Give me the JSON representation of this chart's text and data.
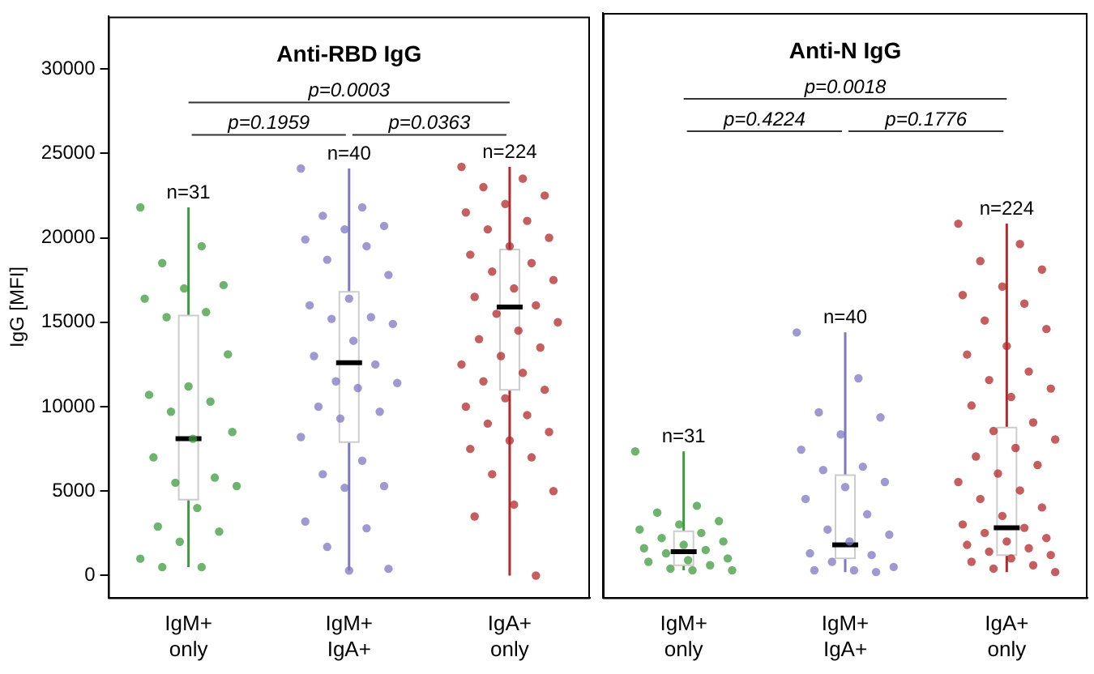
{
  "chart_data": [
    {
      "type": "box",
      "title": "Anti-RBD IgG",
      "ylabel": "IgG [MFI]",
      "categories": [
        "IgM+\nonly",
        "IgM+\nIgA+",
        "IgA+\nonly"
      ],
      "ylim": [
        -1300,
        33100
      ],
      "yticks": [
        0,
        5000,
        10000,
        15000,
        20000,
        25000,
        30000
      ],
      "grid": false,
      "boxes": [
        {
          "low": 500,
          "q1": 4500,
          "median": 8100,
          "q3": 15400,
          "high": 21800
        },
        {
          "low": 300,
          "q1": 7900,
          "median": 12600,
          "q3": 16800,
          "high": 24100
        },
        {
          "low": 0,
          "q1": 11000,
          "median": 15900,
          "q3": 19300,
          "high": 24200
        }
      ],
      "series": [
        {
          "type": "scatter",
          "color": "#3d9a3d",
          "x": [
            "IgM+\nonly",
            "IgM+\nonly",
            "IgM+\nonly",
            "IgM+\nonly",
            "IgM+\nonly",
            "IgM+\nonly",
            "IgM+\nonly",
            "IgM+\nonly",
            "IgM+\nonly",
            "IgM+\nonly",
            "IgM+\nonly",
            "IgM+\nonly",
            "IgM+\nonly",
            "IgM+\nonly",
            "IgM+\nonly",
            "IgM+\nonly",
            "IgM+\nonly",
            "IgM+\nonly",
            "IgM+\nonly",
            "IgM+\nonly",
            "IgM+\nonly",
            "IgM+\nonly",
            "IgM+\nonly",
            "IgM+\nonly",
            "IgM+\nonly",
            "IgM+\nonly"
          ],
          "values": [
            21800,
            19500,
            18500,
            17200,
            17000,
            16400,
            15600,
            15300,
            13100,
            11200,
            10700,
            10300,
            9700,
            8500,
            8100,
            7000,
            5800,
            5500,
            5300,
            4000,
            2900,
            2600,
            2000,
            1000,
            500,
            500
          ]
        },
        {
          "type": "scatter",
          "color": "#7d78c2",
          "x": [
            "IgM+\nIgA+",
            "IgM+\nIgA+",
            "IgM+\nIgA+",
            "IgM+\nIgA+",
            "IgM+\nIgA+",
            "IgM+\nIgA+",
            "IgM+\nIgA+",
            "IgM+\nIgA+",
            "IgM+\nIgA+",
            "IgM+\nIgA+",
            "IgM+\nIgA+",
            "IgM+\nIgA+",
            "IgM+\nIgA+",
            "IgM+\nIgA+",
            "IgM+\nIgA+",
            "IgM+\nIgA+",
            "IgM+\nIgA+",
            "IgM+\nIgA+",
            "IgM+\nIgA+",
            "IgM+\nIgA+",
            "IgM+\nIgA+",
            "IgM+\nIgA+",
            "IgM+\nIgA+",
            "IgM+\nIgA+",
            "IgM+\nIgA+",
            "IgM+\nIgA+",
            "IgM+\nIgA+",
            "IgM+\nIgA+",
            "IgM+\nIgA+",
            "IgM+\nIgA+",
            "IgM+\nIgA+",
            "IgM+\nIgA+",
            "IgM+\nIgA+"
          ],
          "values": [
            24100,
            21800,
            21300,
            20700,
            20500,
            19900,
            19500,
            18700,
            17800,
            16400,
            16000,
            15300,
            15200,
            14900,
            13900,
            13000,
            12500,
            11500,
            11400,
            11100,
            10000,
            9700,
            9300,
            8200,
            6800,
            6000,
            5300,
            5200,
            3200,
            2800,
            1700,
            400,
            300
          ]
        },
        {
          "type": "scatter",
          "color": "#b22a2a",
          "x": [
            "IgA+\nonly",
            "IgA+\nonly",
            "IgA+\nonly",
            "IgA+\nonly",
            "IgA+\nonly",
            "IgA+\nonly",
            "IgA+\nonly",
            "IgA+\nonly",
            "IgA+\nonly",
            "IgA+\nonly",
            "IgA+\nonly",
            "IgA+\nonly",
            "IgA+\nonly",
            "IgA+\nonly",
            "IgA+\nonly",
            "IgA+\nonly",
            "IgA+\nonly",
            "IgA+\nonly",
            "IgA+\nonly",
            "IgA+\nonly",
            "IgA+\nonly",
            "IgA+\nonly",
            "IgA+\nonly",
            "IgA+\nonly",
            "IgA+\nonly",
            "IgA+\nonly",
            "IgA+\nonly",
            "IgA+\nonly",
            "IgA+\nonly",
            "IgA+\nonly",
            "IgA+\nonly",
            "IgA+\nonly",
            "IgA+\nonly",
            "IgA+\nonly",
            "IgA+\nonly",
            "IgA+\nonly",
            "IgA+\nonly",
            "IgA+\nonly",
            "IgA+\nonly",
            "IgA+\nonly"
          ],
          "values": [
            24200,
            23500,
            23000,
            22500,
            22000,
            21500,
            21000,
            20500,
            20000,
            19500,
            19000,
            18500,
            18000,
            17500,
            17000,
            16500,
            16000,
            15500,
            15000,
            14500,
            14000,
            13500,
            13000,
            12500,
            12000,
            11500,
            11000,
            10500,
            10000,
            9500,
            9000,
            8500,
            8000,
            7500,
            7000,
            6000,
            5000,
            4200,
            3500,
            0
          ]
        }
      ],
      "annotations": [
        "p=0.0003",
        "p=0.1959",
        "p=0.0363",
        {
          "text": "n=31",
          "x": "IgM+\nonly",
          "y": 21800
        },
        {
          "text": "n=40",
          "x": "IgM+\nIgA+",
          "y": 24100
        },
        {
          "text": "n=224",
          "x": "IgA+\nonly",
          "y": 24200
        }
      ]
    },
    {
      "type": "box",
      "title": "Anti-N IgG",
      "categories": [
        "IgM+\nonly",
        "IgM+\nIgA+",
        "IgA+\nonly"
      ],
      "ylim": [
        -1300,
        33100
      ],
      "tick_labels": "x",
      "grid": false,
      "boxes": [
        {
          "low": 300,
          "q1": 600,
          "median": 1400,
          "q3": 2600,
          "high": 7300
        },
        {
          "low": 200,
          "q1": 1000,
          "median": 1800,
          "q3": 5900,
          "high": 14300
        },
        {
          "low": 200,
          "q1": 1200,
          "median": 2800,
          "q3": 8700,
          "high": 20700
        }
      ],
      "series": [
        {
          "type": "scatter",
          "color": "#3d9a3d",
          "x": [
            "IgM+\nonly",
            "IgM+\nonly",
            "IgM+\nonly",
            "IgM+\nonly",
            "IgM+\nonly",
            "IgM+\nonly",
            "IgM+\nonly",
            "IgM+\nonly",
            "IgM+\nonly",
            "IgM+\nonly",
            "IgM+\nonly",
            "IgM+\nonly",
            "IgM+\nonly",
            "IgM+\nonly",
            "IgM+\nonly",
            "IgM+\nonly",
            "IgM+\nonly",
            "IgM+\nonly",
            "IgM+\nonly",
            "IgM+\nonly"
          ],
          "values": [
            7300,
            4100,
            3700,
            3200,
            3000,
            2700,
            2500,
            2200,
            2000,
            1800,
            1600,
            1500,
            1300,
            1000,
            900,
            800,
            600,
            400,
            300,
            300
          ]
        },
        {
          "type": "scatter",
          "color": "#7d78c2",
          "x": [
            "IgM+\nIgA+",
            "IgM+\nIgA+",
            "IgM+\nIgA+",
            "IgM+\nIgA+",
            "IgM+\nIgA+",
            "IgM+\nIgA+",
            "IgM+\nIgA+",
            "IgM+\nIgA+",
            "IgM+\nIgA+",
            "IgM+\nIgA+",
            "IgM+\nIgA+",
            "IgM+\nIgA+",
            "IgM+\nIgA+",
            "IgM+\nIgA+",
            "IgM+\nIgA+",
            "IgM+\nIgA+",
            "IgM+\nIgA+",
            "IgM+\nIgA+",
            "IgM+\nIgA+",
            "IgM+\nIgA+",
            "IgM+\nIgA+",
            "IgM+\nIgA+"
          ],
          "values": [
            14300,
            11600,
            9600,
            9300,
            8300,
            7400,
            6400,
            6200,
            5500,
            5200,
            4500,
            3600,
            2700,
            2400,
            2000,
            1300,
            1200,
            800,
            500,
            300,
            300,
            200
          ]
        },
        {
          "type": "scatter",
          "color": "#b22a2a",
          "x": [
            "IgA+\nonly",
            "IgA+\nonly",
            "IgA+\nonly",
            "IgA+\nonly",
            "IgA+\nonly",
            "IgA+\nonly",
            "IgA+\nonly",
            "IgA+\nonly",
            "IgA+\nonly",
            "IgA+\nonly",
            "IgA+\nonly",
            "IgA+\nonly",
            "IgA+\nonly",
            "IgA+\nonly",
            "IgA+\nonly",
            "IgA+\nonly",
            "IgA+\nonly",
            "IgA+\nonly",
            "IgA+\nonly",
            "IgA+\nonly",
            "IgA+\nonly",
            "IgA+\nonly",
            "IgA+\nonly",
            "IgA+\nonly",
            "IgA+\nonly",
            "IgA+\nonly",
            "IgA+\nonly",
            "IgA+\nonly",
            "IgA+\nonly",
            "IgA+\nonly",
            "IgA+\nonly",
            "IgA+\nonly",
            "IgA+\nonly",
            "IgA+\nonly",
            "IgA+\nonly",
            "IgA+\nonly",
            "IgA+\nonly",
            "IgA+\nonly",
            "IgA+\nonly",
            "IgA+\nonly",
            "IgA+\nonly",
            "IgA+\nonly"
          ],
          "values": [
            20700,
            19500,
            18500,
            18000,
            17000,
            16500,
            16000,
            15000,
            14500,
            13500,
            13000,
            12000,
            11500,
            11000,
            10500,
            10000,
            9000,
            8500,
            8000,
            7500,
            7000,
            6500,
            6000,
            5500,
            5000,
            4500,
            4000,
            3500,
            3000,
            2800,
            2500,
            2200,
            2000,
            1800,
            1600,
            1400,
            1200,
            1000,
            800,
            600,
            400,
            200
          ]
        }
      ],
      "annotations": [
        "p=0.0018",
        "p=0.4224",
        "p=0.1776",
        {
          "text": "n=31",
          "x": "IgM+\nonly",
          "y": 7300
        },
        {
          "text": "n=40",
          "x": "IgM+\nIgA+",
          "y": 14300
        },
        {
          "text": "n=224",
          "x": "IgA+\nonly",
          "y": 20700
        }
      ]
    }
  ]
}
